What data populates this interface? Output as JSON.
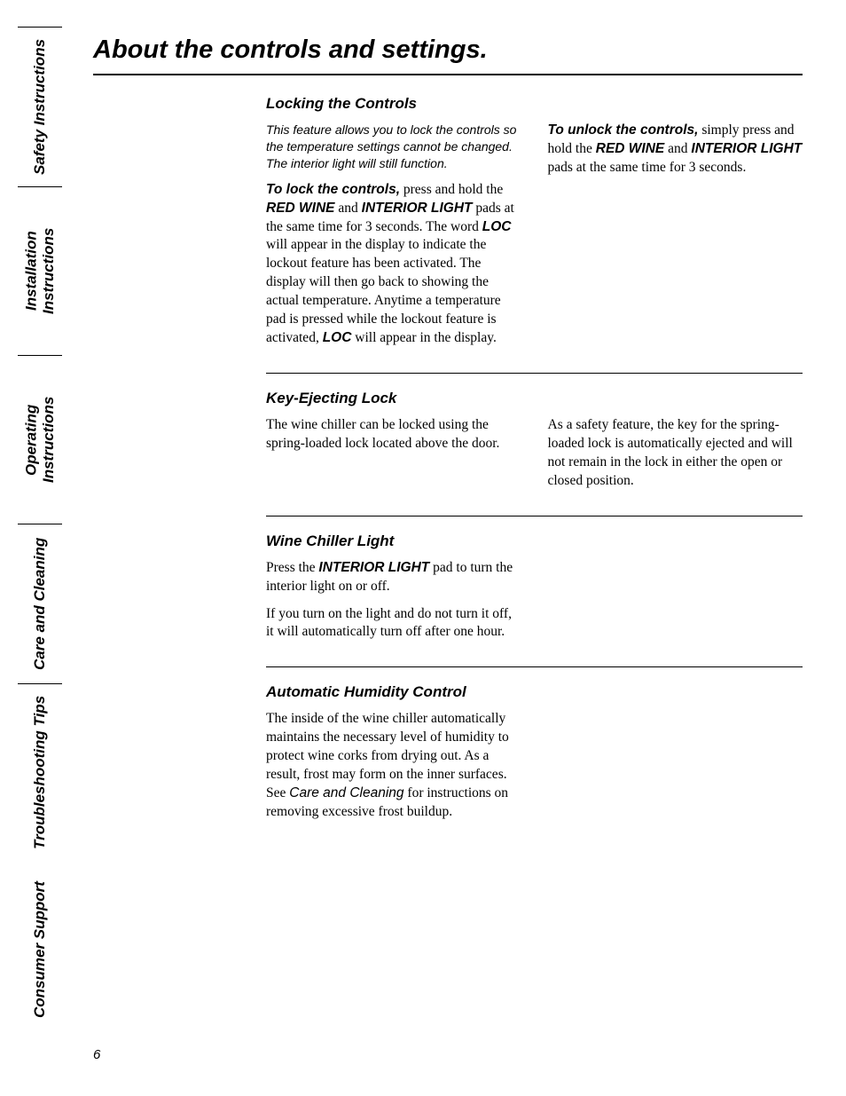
{
  "page_number": "6",
  "title": "About the controls and settings.",
  "sidebar": {
    "tabs": [
      "Safety Instructions",
      "Installation\nInstructions",
      "Operating\nInstructions",
      "Care and Cleaning",
      "Troubleshooting Tips",
      "Consumer Support"
    ]
  },
  "sections": {
    "locking": {
      "title": "Locking the Controls",
      "intro": "This feature allows you to lock the controls so the temperature settings cannot be changed. The interior light will still function.",
      "lock_lead": "To lock the controls,",
      "lock_t1": " press and hold the ",
      "lock_kw1": "RED WINE",
      "lock_t2": " and ",
      "lock_kw2": "INTERIOR LIGHT",
      "lock_t3": " pads at the same time for 3 seconds. The word ",
      "lock_kw3": "LOC",
      "lock_t4": " will appear in the display to indicate the lockout feature has been activated. The display will then go back to showing the actual temperature. Anytime a temperature pad is pressed while the lockout feature is activated, ",
      "lock_kw4": "LOC",
      "lock_t5": " will appear in the display.",
      "unlock_lead": "To unlock the controls,",
      "unlock_t1": " simply press and hold the ",
      "unlock_kw1": "RED WINE",
      "unlock_t2": " and ",
      "unlock_kw2": "INTERIOR LIGHT",
      "unlock_t3": " pads at the same time for 3 seconds."
    },
    "key": {
      "title": "Key-Ejecting Lock",
      "col1": "The wine chiller can be locked using the spring-loaded lock located above the door.",
      "col2": "As a safety feature, the key for the spring-loaded lock is automatically ejected and will not remain in the lock in either the open or closed position."
    },
    "light": {
      "title": "Wine Chiller Light",
      "p1a": "Press the ",
      "p1kw": "INTERIOR LIGHT",
      "p1b": " pad to turn the interior light on or off.",
      "p2": "If you turn on the light and do not turn it off, it will automatically turn off after one hour."
    },
    "humidity": {
      "title": "Automatic Humidity Control",
      "p1a": "The inside of the wine chiller automatically maintains the necessary level of humidity to protect wine corks from drying out. As a result, frost may form on the inner surfaces. See ",
      "p1ref": "Care and Cleaning",
      "p1b": " for instructions on removing excessive frost buildup."
    }
  }
}
